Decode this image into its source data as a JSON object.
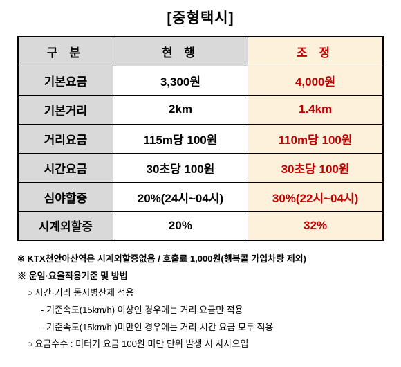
{
  "title": "[중형택시]",
  "table": {
    "headers": {
      "category": "구 분",
      "current": "현 행",
      "adjusted": "조 정"
    },
    "rows": [
      {
        "category": "기본요금",
        "current": "3,300원",
        "adjusted": "4,000원"
      },
      {
        "category": "기본거리",
        "current": "2km",
        "adjusted": "1.4km"
      },
      {
        "category": "거리요금",
        "current": "115m당 100원",
        "adjusted": "110m당 100원"
      },
      {
        "category": "시간요금",
        "current": "30초당 100원",
        "adjusted": "30초당 100원"
      },
      {
        "category": "심야할증",
        "current": "20%(24시~04시)",
        "adjusted": "30%(22시~04시)"
      },
      {
        "category": "시계외할증",
        "current": "20%",
        "adjusted": "32%"
      }
    ],
    "header_bg": "#d9d9d9",
    "adjusted_bg": "#fdf1dc",
    "adjusted_color": "#c00000",
    "border_color": "#000000"
  },
  "notes": {
    "line1": "※ KTX천안아산역은 시계외할증없음 / 호출료 1,000원(행복콜 가입차량 제외)",
    "line2": "※ 운임·요율적용기준 및 방법",
    "line3": "○ 시간·거리 동시병산제 적용",
    "line4": "- 기준속도(15km/h) 이상인 경우에는 거리 요금만 적용",
    "line5": "- 기준속도(15km/h )미만인 경우에는 거리·시간 요금 모두 적용",
    "line6": "○ 요금수수 : 미터기 요금 100원 미만 단위 발생 시 사사오입"
  }
}
